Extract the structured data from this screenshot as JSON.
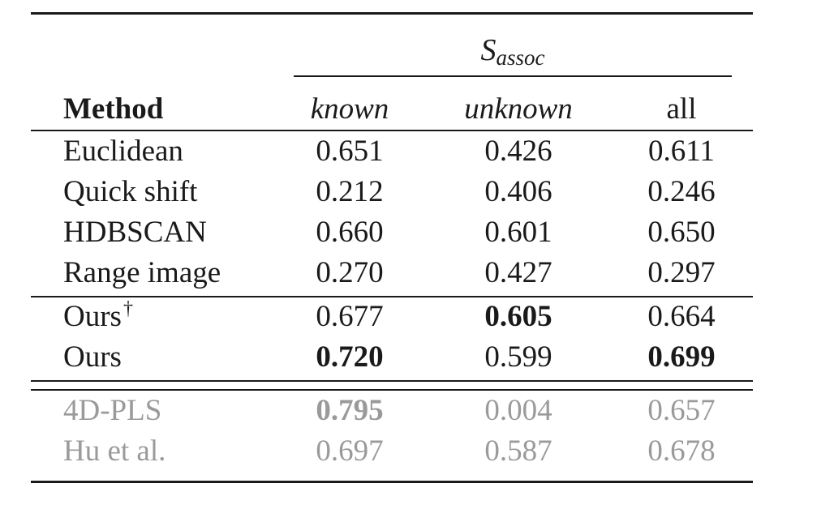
{
  "header": {
    "group_label_main": "S",
    "group_label_sub": "assoc",
    "columns": [
      "Method",
      "known",
      "unknown",
      "all"
    ]
  },
  "rows": [
    {
      "method": "Euclidean",
      "known": "0.651",
      "unknown": "0.426",
      "all": "0.611"
    },
    {
      "method": "Quick shift",
      "known": "0.212",
      "unknown": "0.406",
      "all": "0.246"
    },
    {
      "method": "HDBSCAN",
      "known": "0.660",
      "unknown": "0.601",
      "all": "0.650"
    },
    {
      "method": "Range image",
      "known": "0.270",
      "unknown": "0.427",
      "all": "0.297"
    },
    {
      "method": "Ours",
      "marker": "†",
      "known": "0.677",
      "unknown": "0.605",
      "all": "0.664"
    },
    {
      "method": "Ours",
      "known": "0.720",
      "unknown": "0.599",
      "all": "0.699"
    },
    {
      "method": "4D-PLS",
      "known": "0.795",
      "unknown": "0.004",
      "all": "0.657"
    },
    {
      "method": "Hu et al.",
      "known": "0.697",
      "unknown": "0.587",
      "all": "0.678"
    }
  ],
  "colors": {
    "text": "#1a1a1a",
    "reference_rows": "#9a9a9a"
  }
}
